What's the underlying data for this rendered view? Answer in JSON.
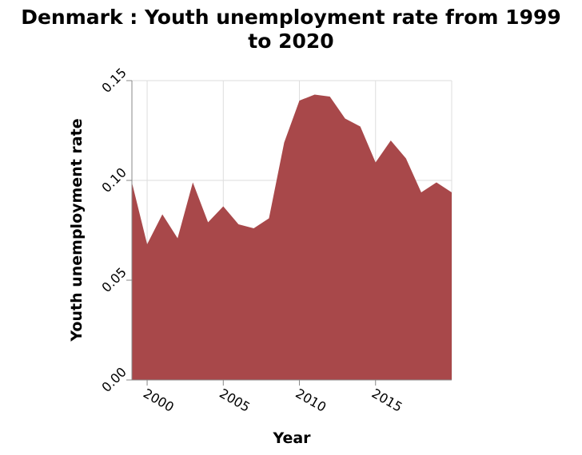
{
  "chart_data": {
    "type": "area",
    "title": [
      "Denmark : Youth unemployment rate from 1999",
      "to 2020"
    ],
    "xlabel": "Year",
    "ylabel": "Youth unemployment rate",
    "x": [
      1999,
      2000,
      2001,
      2002,
      2003,
      2004,
      2005,
      2006,
      2007,
      2008,
      2009,
      2010,
      2011,
      2012,
      2013,
      2014,
      2015,
      2016,
      2017,
      2018,
      2019,
      2020
    ],
    "values": [
      0.099,
      0.068,
      0.083,
      0.071,
      0.099,
      0.079,
      0.087,
      0.078,
      0.076,
      0.081,
      0.119,
      0.14,
      0.143,
      0.142,
      0.131,
      0.127,
      0.109,
      0.12,
      0.111,
      0.094,
      0.099,
      0.094
    ],
    "xlim": [
      1999,
      2020
    ],
    "ylim": [
      0,
      0.15
    ],
    "x_ticks": [
      2000,
      2005,
      2010,
      2015
    ],
    "y_ticks": [
      "0.00",
      "0.05",
      "0.10",
      "0.15"
    ],
    "grid": true,
    "colors": {
      "area": "#a8484a"
    }
  }
}
